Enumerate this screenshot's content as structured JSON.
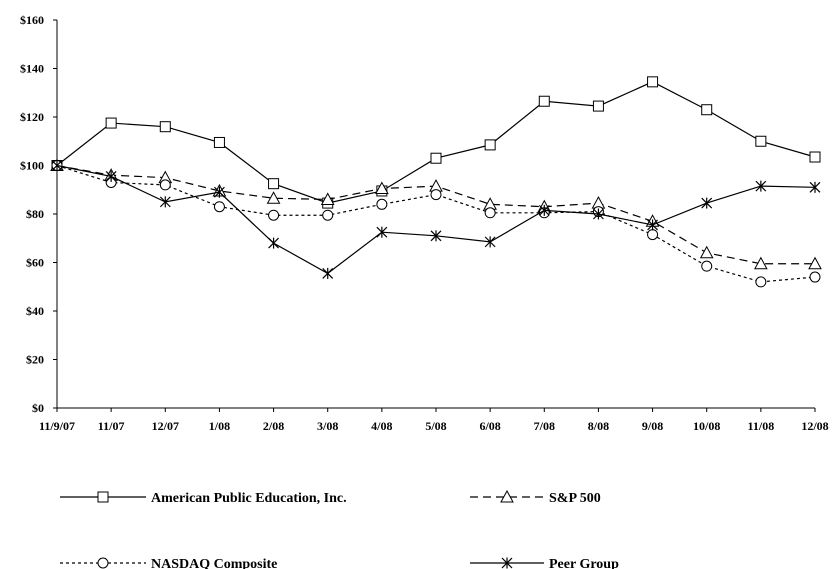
{
  "chart_data": {
    "type": "line",
    "categories": [
      "11/9/07",
      "11/07",
      "12/07",
      "1/08",
      "2/08",
      "3/08",
      "4/08",
      "5/08",
      "6/08",
      "7/08",
      "8/08",
      "9/08",
      "10/08",
      "11/08",
      "12/08"
    ],
    "ylim": [
      0,
      160
    ],
    "yticks": [
      0,
      20,
      40,
      60,
      80,
      100,
      120,
      140,
      160
    ],
    "ytick_labels": [
      "$0",
      "$20",
      "$40",
      "$60",
      "$80",
      "$100",
      "$120",
      "$140",
      "$160"
    ],
    "grid": false,
    "legend_position": "bottom",
    "series": [
      {
        "name": "American Public Education, Inc.",
        "marker": "square",
        "line_style": "solid",
        "values": [
          100,
          117.5,
          116,
          109.5,
          92.5,
          84.5,
          89.5,
          103,
          108.5,
          126.5,
          124.5,
          134.5,
          123,
          110,
          103.5
        ]
      },
      {
        "name": "S&P 500",
        "marker": "triangle",
        "line_style": "long-dash",
        "values": [
          100,
          96,
          95,
          89.5,
          86.5,
          86,
          90.5,
          91.5,
          84,
          83,
          84.5,
          77,
          64,
          59.5,
          59.5
        ]
      },
      {
        "name": "NASDAQ Composite",
        "marker": "circle",
        "line_style": "short-dash",
        "values": [
          100,
          93,
          92,
          83,
          79.5,
          79.5,
          84,
          88,
          80.5,
          80.5,
          81,
          71.5,
          58.5,
          52,
          54
        ]
      },
      {
        "name": "Peer Group",
        "marker": "asterisk",
        "line_style": "solid",
        "values": [
          100,
          95.5,
          85,
          89,
          68,
          55.5,
          72.5,
          71,
          68.5,
          81.5,
          80,
          75.5,
          84.5,
          91.5,
          91
        ]
      }
    ]
  }
}
